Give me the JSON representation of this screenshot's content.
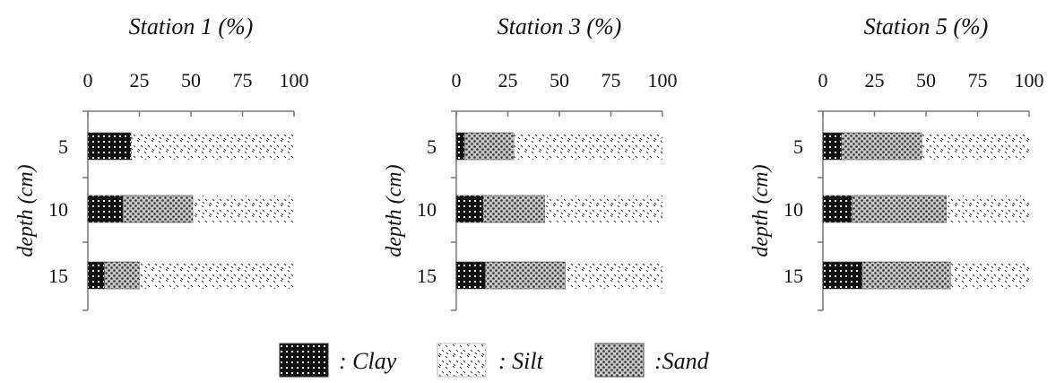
{
  "chart_data": [
    {
      "type": "bar",
      "stacked": true,
      "orientation": "horizontal",
      "title": "Station 1 (%)",
      "ylabel": "depth (cm)",
      "categories": [
        "5",
        "10",
        "15"
      ],
      "xlim": [
        0,
        100
      ],
      "xticks": [
        "0",
        "25",
        "50",
        "75",
        "100"
      ],
      "series": [
        {
          "name": ": Clay",
          "values": [
            21,
            17,
            8
          ]
        },
        {
          "name": ": Silt",
          "values": [
            79,
            49,
            75
          ]
        },
        {
          "name": ":Sand",
          "values": [
            0,
            34,
            17
          ]
        }
      ]
    },
    {
      "type": "bar",
      "stacked": true,
      "orientation": "horizontal",
      "title": "Station 3 (%)",
      "ylabel": "depth (cm)",
      "categories": [
        "5",
        "10",
        "15"
      ],
      "xlim": [
        0,
        100
      ],
      "xticks": [
        "0",
        "25",
        "50",
        "75",
        "100"
      ],
      "series": [
        {
          "name": ": Clay",
          "values": [
            4,
            13,
            14
          ]
        },
        {
          "name": ": Silt",
          "values": [
            72,
            57,
            47
          ]
        },
        {
          "name": ":Sand",
          "values": [
            24,
            30,
            39
          ]
        }
      ]
    },
    {
      "type": "bar",
      "stacked": true,
      "orientation": "horizontal",
      "title": "Station 5 (%)",
      "ylabel": "depth (cm)",
      "categories": [
        "5",
        "10",
        "15"
      ],
      "xlim": [
        0,
        100
      ],
      "xticks": [
        "0",
        "25",
        "50",
        "75",
        "100"
      ],
      "series": [
        {
          "name": ": Clay",
          "values": [
            9,
            14,
            19
          ]
        },
        {
          "name": ": Silt",
          "values": [
            52,
            40,
            38
          ]
        },
        {
          "name": ":Sand",
          "values": [
            39,
            46,
            43
          ]
        }
      ]
    }
  ],
  "legend": {
    "items": [
      {
        "label": ": Clay",
        "pattern": "clay"
      },
      {
        "label": ": Silt",
        "pattern": "silt"
      },
      {
        "label": ":Sand",
        "pattern": "sand"
      }
    ]
  },
  "colors": {
    "clay": "#111111",
    "sand": "#8a8a8a",
    "silt": "#ffffff",
    "axis": "#777777"
  }
}
